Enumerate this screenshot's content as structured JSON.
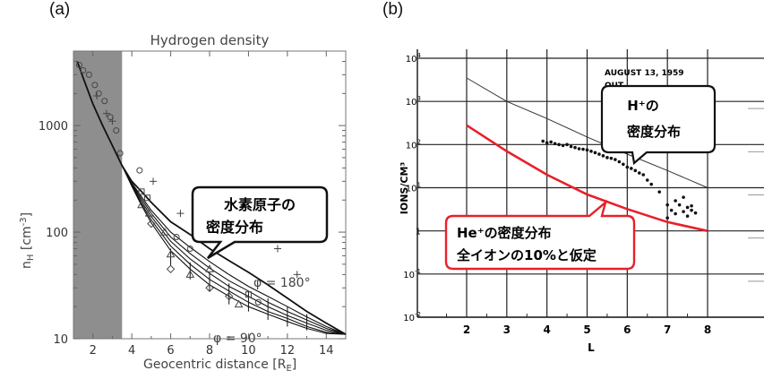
{
  "panels": {
    "a": {
      "label": "(a)"
    },
    "b": {
      "label": "(b)"
    }
  },
  "colors": {
    "shade": "#8e8e8e",
    "red": "#e8202a",
    "ink": "#111111"
  },
  "chart_data": [
    {
      "type": "line",
      "panel": "(a)",
      "title": "Hydrogen density",
      "xlabel": "Geocentric distance [R",
      "xlabel_sub": "E",
      "xlabel_close": "]",
      "ylabel": "n",
      "ylabel_sub": "H",
      "ylabel_unit": " [cm",
      "ylabel_exp": "-3",
      "ylabel_close": "]",
      "xlim": [
        1,
        15
      ],
      "ylim": [
        10,
        5000
      ],
      "yscale": "log",
      "xticks": [
        2,
        4,
        6,
        8,
        10,
        12,
        14
      ],
      "yticks": [
        {
          "v": 10,
          "label": "10"
        },
        {
          "v": 100,
          "label": "100"
        },
        {
          "v": 1000,
          "label": "1000"
        }
      ],
      "shaded_x": [
        1,
        3.5
      ],
      "series": [
        {
          "x": [
            1.2,
            1.5,
            2,
            2.5,
            3,
            3.5,
            4,
            4.5,
            5,
            6,
            7,
            8,
            9,
            10,
            11,
            12,
            13,
            14,
            15
          ],
          "y": [
            4000,
            2800,
            1600,
            1000,
            650,
            420,
            300,
            240,
            190,
            125,
            95,
            70,
            54,
            42,
            32,
            24,
            18,
            14,
            11
          ]
        },
        {
          "x": [
            3.5,
            4,
            4.5,
            5,
            6,
            7,
            8,
            9,
            10,
            11,
            12,
            13,
            14,
            15
          ],
          "y": [
            420,
            290,
            215,
            160,
            100,
            72,
            53,
            40,
            31,
            25,
            20,
            16,
            13,
            11
          ]
        },
        {
          "x": [
            3.5,
            4,
            4.5,
            5,
            6,
            7,
            8,
            9,
            10,
            11,
            12,
            13,
            14,
            15
          ],
          "y": [
            420,
            285,
            205,
            150,
            90,
            63,
            46,
            35,
            28,
            22,
            18,
            15,
            12.5,
            11
          ]
        },
        {
          "x": [
            3.5,
            4,
            4.5,
            5,
            6,
            7,
            8,
            9,
            10,
            11,
            12,
            13,
            14,
            15
          ],
          "y": [
            420,
            280,
            195,
            140,
            82,
            56,
            41,
            31,
            25,
            20,
            16.5,
            14,
            12,
            11
          ]
        },
        {
          "x": [
            3.5,
            4,
            4.5,
            5,
            6,
            7,
            8,
            9,
            10,
            11,
            12,
            13,
            14,
            15
          ],
          "y": [
            420,
            275,
            185,
            130,
            74,
            50,
            36,
            28,
            22,
            18,
            15.5,
            13,
            11.5,
            11
          ]
        },
        {
          "x": [
            3.5,
            4,
            4.5,
            5,
            6,
            7,
            8,
            9,
            10,
            11,
            12,
            13,
            14,
            15
          ],
          "y": [
            420,
            270,
            178,
            122,
            67,
            45,
            32,
            25,
            20,
            17,
            14.5,
            12.5,
            11.2,
            11
          ]
        }
      ],
      "markers": [
        {
          "x": 1.3,
          "y": 3700,
          "s": "o"
        },
        {
          "x": 1.5,
          "y": 3300,
          "s": "o"
        },
        {
          "x": 1.8,
          "y": 3000,
          "s": "o"
        },
        {
          "x": 2.1,
          "y": 2400,
          "s": "o"
        },
        {
          "x": 2.3,
          "y": 2000,
          "s": "o"
        },
        {
          "x": 2.6,
          "y": 1700,
          "s": "o"
        },
        {
          "x": 2.9,
          "y": 1200,
          "s": "o"
        },
        {
          "x": 3.2,
          "y": 900,
          "s": "o"
        },
        {
          "x": 3.4,
          "y": 550,
          "s": "o"
        },
        {
          "x": 2.2,
          "y": 1900,
          "s": "+"
        },
        {
          "x": 2.7,
          "y": 1300,
          "s": "+"
        },
        {
          "x": 3.0,
          "y": 1100,
          "s": "+"
        },
        {
          "x": 4.5,
          "y": 240,
          "s": "sq"
        },
        {
          "x": 4.8,
          "y": 210,
          "s": "sq"
        },
        {
          "x": 4.4,
          "y": 380,
          "s": "o"
        },
        {
          "x": 5.1,
          "y": 300,
          "s": "+"
        },
        {
          "x": 4.9,
          "y": 150,
          "s": "^"
        },
        {
          "x": 5.7,
          "y": 100,
          "s": "^"
        },
        {
          "x": 6.0,
          "y": 62,
          "s": "^"
        },
        {
          "x": 6.0,
          "y": 45,
          "s": "d"
        },
        {
          "x": 6.3,
          "y": 90,
          "s": "o"
        },
        {
          "x": 6.5,
          "y": 150,
          "s": "+"
        },
        {
          "x": 7.0,
          "y": 70,
          "s": "o"
        },
        {
          "x": 7.0,
          "y": 40,
          "s": "^"
        },
        {
          "x": 8.0,
          "y": 45,
          "s": "^"
        },
        {
          "x": 8.0,
          "y": 30,
          "s": "d"
        },
        {
          "x": 8.5,
          "y": 120,
          "s": "+"
        },
        {
          "x": 9.0,
          "y": 25,
          "s": "d"
        },
        {
          "x": 9.5,
          "y": 21,
          "s": "^"
        },
        {
          "x": 10.0,
          "y": 26,
          "s": "sq"
        },
        {
          "x": 10.5,
          "y": 22,
          "s": "o"
        },
        {
          "x": 11.5,
          "y": 70,
          "s": "+"
        },
        {
          "x": 12.5,
          "y": 40,
          "s": "+"
        },
        {
          "x": 4.5,
          "y": 180,
          "s": "^"
        },
        {
          "x": 5.0,
          "y": 120,
          "s": "d"
        }
      ],
      "annotations": [
        {
          "text": "φ = 180°"
        },
        {
          "text": "φ = 90°"
        }
      ],
      "callout": [
        "水素原子の",
        "密度分布"
      ]
    },
    {
      "type": "line",
      "panel": "(b)",
      "xlabel": "L",
      "ylabel": "IONS/CM³",
      "header_text": [
        "AUGUST 13, 1959",
        "OUT"
      ],
      "xlim": [
        1.2,
        8.6
      ],
      "ylim": [
        0.01,
        10000
      ],
      "yscale": "log",
      "xticks": [
        2,
        3,
        4,
        5,
        6,
        7,
        8
      ],
      "yticks": [
        {
          "v": 10000,
          "b": "10",
          "e": "4"
        },
        {
          "v": 1000,
          "b": "10",
          "e": "3"
        },
        {
          "v": 100,
          "b": "10",
          "e": "2"
        },
        {
          "v": 10,
          "b": "10",
          "e": "1"
        },
        {
          "v": 1,
          "b": "1",
          "e": ""
        },
        {
          "v": 0.1,
          "b": "10",
          "e": "-1"
        },
        {
          "v": 0.01,
          "b": "10",
          "e": "-2"
        }
      ],
      "series": [
        {
          "name": "H⁺",
          "x": [
            2,
            3,
            4,
            5,
            6,
            7,
            8
          ],
          "y": [
            3500,
            1000,
            400,
            150,
            60,
            25,
            10
          ]
        },
        {
          "name": "He⁺",
          "x": [
            2,
            3,
            4,
            5,
            6,
            7,
            8
          ],
          "y": [
            280,
            70,
            20,
            7,
            3.2,
            1.6,
            1.0
          ]
        }
      ],
      "points_h": [
        [
          3.9,
          120
        ],
        [
          4.0,
          110
        ],
        [
          4.1,
          115
        ],
        [
          4.2,
          105
        ],
        [
          4.3,
          100
        ],
        [
          4.4,
          95
        ],
        [
          4.5,
          100
        ],
        [
          4.6,
          90
        ],
        [
          4.7,
          85
        ],
        [
          4.8,
          80
        ],
        [
          4.9,
          78
        ],
        [
          5.0,
          75
        ],
        [
          5.1,
          70
        ],
        [
          5.2,
          65
        ],
        [
          5.3,
          60
        ],
        [
          5.4,
          55
        ],
        [
          5.5,
          50
        ],
        [
          5.6,
          48
        ],
        [
          5.7,
          45
        ],
        [
          5.8,
          40
        ],
        [
          5.9,
          35
        ],
        [
          6.0,
          30
        ],
        [
          6.1,
          28
        ],
        [
          6.2,
          25
        ],
        [
          6.3,
          22
        ],
        [
          6.4,
          20
        ],
        [
          6.5,
          15
        ],
        [
          6.6,
          12
        ],
        [
          6.8,
          8
        ],
        [
          7.0,
          4
        ],
        [
          7.1,
          3
        ],
        [
          7.2,
          5
        ],
        [
          7.3,
          4
        ],
        [
          7.4,
          6
        ],
        [
          7.5,
          3.5
        ],
        [
          7.6,
          3
        ],
        [
          7.0,
          2
        ],
        [
          7.2,
          2.5
        ],
        [
          7.4,
          2.8
        ],
        [
          7.5,
          2.2
        ],
        [
          7.7,
          2.6
        ],
        [
          7.6,
          3.8
        ]
      ],
      "callout_h": [
        "H⁺の",
        "密度分布"
      ],
      "callout_he": [
        "He⁺の密度分布",
        "全イオンの10%と仮定"
      ]
    }
  ]
}
